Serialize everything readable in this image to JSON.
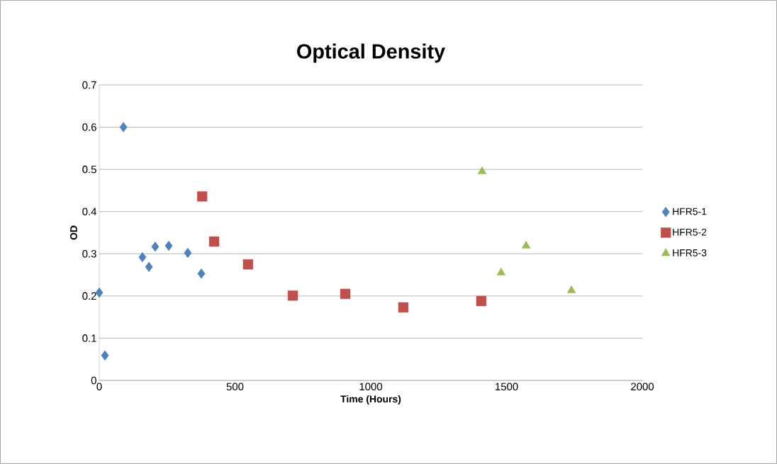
{
  "chart_data": {
    "type": "scatter",
    "title": "Optical Density",
    "xlabel": "Time (Hours)",
    "ylabel": "OD",
    "xlim": [
      0,
      2000
    ],
    "xticks": [
      0,
      500,
      1000,
      1500,
      2000
    ],
    "ylim": [
      0,
      0.7
    ],
    "yticks": [
      0,
      0.1,
      0.2,
      0.3,
      0.4,
      0.5,
      0.6,
      0.7
    ],
    "grid": "y",
    "legend": "right",
    "series": [
      {
        "name": "HFR5-1",
        "color": "#4f81bd",
        "marker": "diamond",
        "x": [
          0,
          21,
          89,
          159,
          183,
          206,
          256,
          326,
          376
        ],
        "values": [
          0.208,
          0.059,
          0.6,
          0.292,
          0.269,
          0.317,
          0.319,
          0.302,
          0.253
        ]
      },
      {
        "name": "HFR5-2",
        "color": "#c0504d",
        "marker": "square",
        "x": [
          379,
          423,
          548,
          713,
          906,
          1120,
          1407
        ],
        "values": [
          0.436,
          0.329,
          0.275,
          0.201,
          0.205,
          0.173,
          0.188
        ]
      },
      {
        "name": "HFR5-3",
        "color": "#9bbb59",
        "marker": "triangle",
        "x": [
          1410,
          1480,
          1572,
          1739
        ],
        "values": [
          0.495,
          0.255,
          0.319,
          0.213
        ]
      }
    ]
  }
}
